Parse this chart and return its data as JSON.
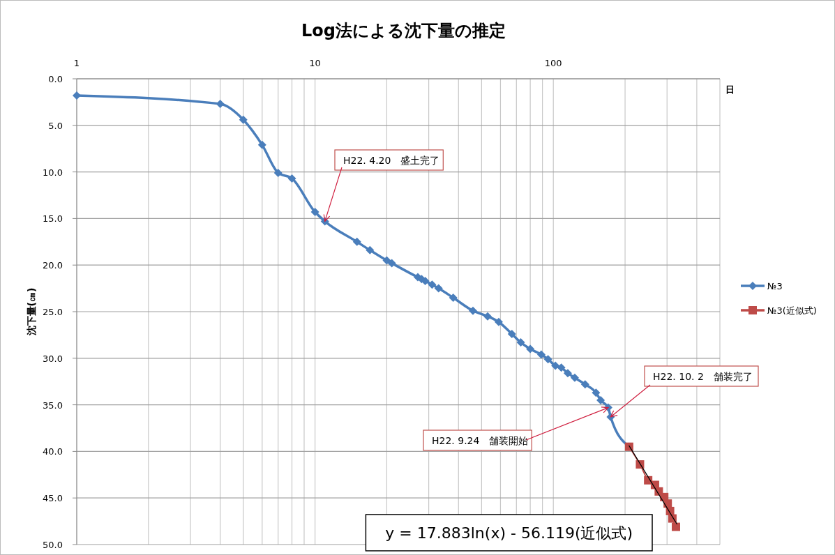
{
  "chart_data": {
    "type": "line",
    "title": "Log法による沈下量の推定",
    "xlabel": "日",
    "ylabel": "沈下量(㎝)",
    "log": "x",
    "xlim": [
      1,
      500
    ],
    "ylim": [
      50,
      0
    ],
    "xticks": [
      1,
      {
        "value": 2,
        "label": null
      },
      {
        "value": 3,
        "label": null
      },
      {
        "value": 4,
        "label": null
      },
      {
        "value": 5,
        "label": null
      },
      {
        "value": 6,
        "label": null
      },
      {
        "value": 7,
        "label": null
      },
      {
        "value": 8,
        "label": null
      },
      {
        "value": 9,
        "label": null
      },
      10,
      {
        "value": 20,
        "label": null
      },
      {
        "value": 30,
        "label": null
      },
      {
        "value": 40,
        "label": null
      },
      {
        "value": 50,
        "label": null
      },
      {
        "value": 60,
        "label": null
      },
      {
        "value": 70,
        "label": null
      },
      {
        "value": 80,
        "label": null
      },
      {
        "value": 90,
        "label": null
      },
      100,
      {
        "value": 200,
        "label": null
      },
      {
        "value": 300,
        "label": null
      },
      {
        "value": 400,
        "label": null
      },
      {
        "value": 500,
        "label": null
      }
    ],
    "yticks": [
      {
        "value": 0,
        "label": "0.0"
      },
      {
        "value": 5,
        "label": "5.0"
      },
      {
        "value": 10,
        "label": "10.0"
      },
      {
        "value": 15,
        "label": "15.0"
      },
      {
        "value": 20,
        "label": "20.0"
      },
      {
        "value": 25,
        "label": "25.0"
      },
      {
        "value": 30,
        "label": "30.0"
      },
      {
        "value": 35,
        "label": "35.0"
      },
      {
        "value": 40,
        "label": "40.0"
      },
      {
        "value": 45,
        "label": "45.0"
      },
      {
        "value": 50,
        "label": "50.0"
      }
    ],
    "grid": true,
    "legend": "right",
    "line_style": "solid",
    "series": [
      {
        "name": "№3",
        "color": "#4a7ebb",
        "marker": "diamond",
        "x": [
          1,
          4,
          5,
          6,
          7,
          8,
          10,
          11,
          15,
          17,
          20,
          21,
          27,
          28,
          29,
          31,
          33,
          38,
          46,
          53,
          59,
          67,
          73,
          80,
          89,
          95,
          102,
          108,
          115,
          123,
          136,
          151,
          158,
          170,
          174,
          208
        ],
        "values": [
          1.8,
          2.7,
          4.4,
          7.1,
          10.1,
          10.7,
          14.3,
          15.3,
          17.5,
          18.4,
          19.5,
          19.8,
          21.3,
          21.5,
          21.7,
          22.1,
          22.5,
          23.5,
          24.9,
          25.5,
          26.1,
          27.4,
          28.3,
          29.0,
          29.6,
          30.1,
          30.8,
          31.0,
          31.6,
          32.1,
          32.8,
          33.7,
          34.5,
          35.3,
          36.3,
          39.5
        ]
      },
      {
        "name": "№3(近似式)",
        "color": "#be4b48",
        "marker": "square",
        "x": [
          208,
          231,
          250,
          267,
          277,
          292,
          302,
          309,
          316,
          327
        ],
        "values": [
          39.5,
          41.4,
          43.1,
          43.6,
          44.3,
          44.9,
          45.6,
          46.4,
          47.2,
          48.1
        ]
      },
      {
        "type": "line",
        "color": "#000000",
        "marker": "none",
        "x": [
          208,
          330
        ],
        "values": [
          39.4,
          47.8
        ]
      }
    ],
    "annotations": [
      {
        "text": "H22. 4.20　盛土完了",
        "x": 11,
        "y": 15.3
      },
      {
        "text": "H22. 9.24　舗装開始",
        "x": 170,
        "y": 35.3
      },
      {
        "text": "H22. 10. 2　舗装完了",
        "x": 174,
        "y": 36.3
      },
      "y = 17.883ln(x) - 56.119(近似式)"
    ]
  }
}
